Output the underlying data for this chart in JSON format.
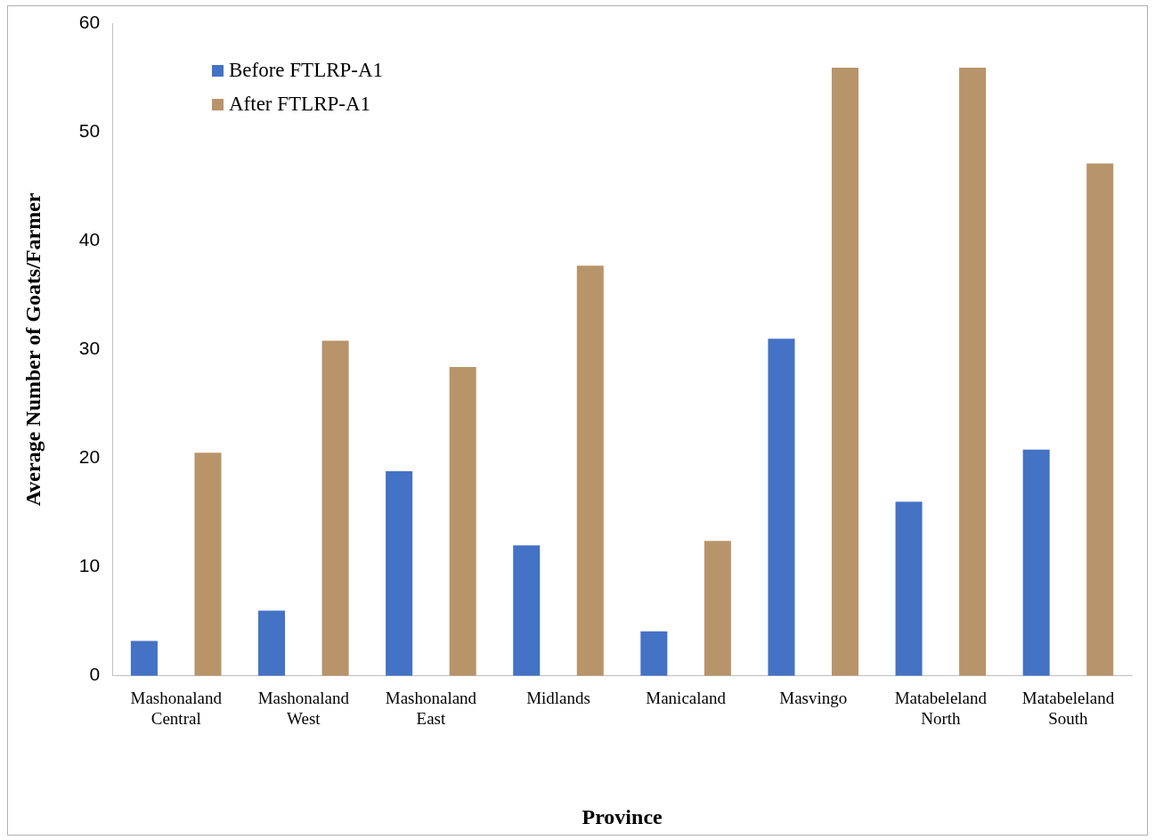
{
  "chart_data": {
    "type": "bar",
    "xlabel": "Province",
    "ylabel": "Average Number of Goats/Farmer",
    "categories": [
      "Mashonaland Central",
      "Mashonaland West",
      "Mashonaland East",
      "Midlands",
      "Manicaland",
      "Masvingo",
      "Matabeleland North",
      "Matabeleland South"
    ],
    "series": [
      {
        "name": "Before FTLRP-A1",
        "color": "#4472c4",
        "values": [
          3.2,
          6.0,
          18.8,
          12.0,
          4.1,
          31.0,
          16.0,
          20.8
        ]
      },
      {
        "name": "After FTLRP-A1",
        "color": "#b8946a",
        "values": [
          20.5,
          30.8,
          28.4,
          37.7,
          12.4,
          55.9,
          55.9,
          47.1
        ]
      }
    ],
    "ylim": [
      0,
      60
    ],
    "yticks": [
      0,
      10,
      20,
      30,
      40,
      50,
      60
    ],
    "grid": false,
    "legend": "top left"
  }
}
